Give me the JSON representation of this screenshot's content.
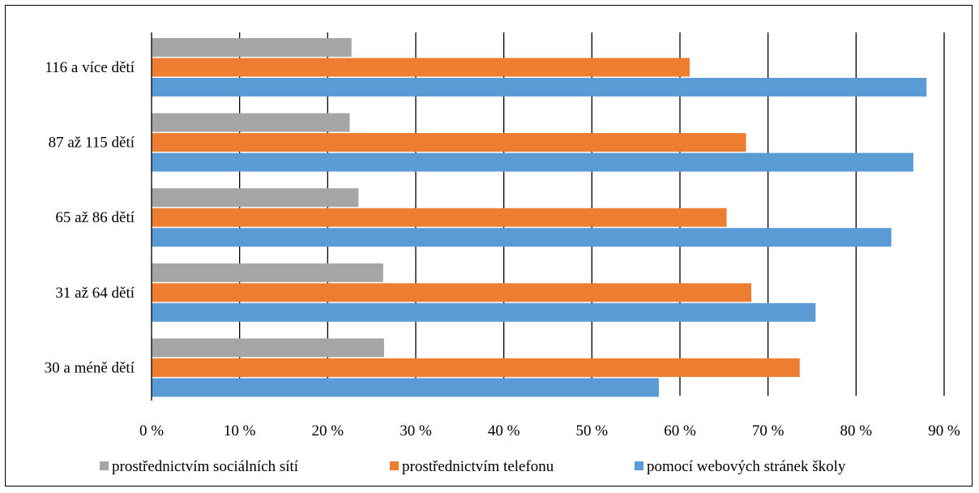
{
  "chart_data": {
    "type": "bar",
    "orientation": "horizontal",
    "categories": [
      "116 a více dětí",
      "87 až 115 dětí",
      "65 až 86 dětí",
      "31 až 64 dětí",
      "30 a méně dětí"
    ],
    "series": [
      {
        "name": "prostřednictvím sociálních sítí",
        "color": "#a5a5a5",
        "values": [
          22.7,
          22.5,
          23.5,
          26.3,
          26.4
        ]
      },
      {
        "name": "prostřednictvím telefonu",
        "color": "#ed7d31",
        "values": [
          61.1,
          67.5,
          65.3,
          68.1,
          73.6
        ]
      },
      {
        "name": "pomocí webových stránek školy",
        "color": "#5b9bd5",
        "values": [
          88.0,
          86.5,
          84.0,
          75.4,
          57.6
        ]
      }
    ],
    "x_ticks": [
      "0 %",
      "10 %",
      "20 %",
      "30 %",
      "40 %",
      "50 %",
      "60 %",
      "70 %",
      "80 %",
      "90 %"
    ],
    "xlim": [
      0,
      90
    ],
    "grid": true,
    "legend_position": "bottom",
    "title": "",
    "xlabel": "",
    "ylabel": ""
  }
}
